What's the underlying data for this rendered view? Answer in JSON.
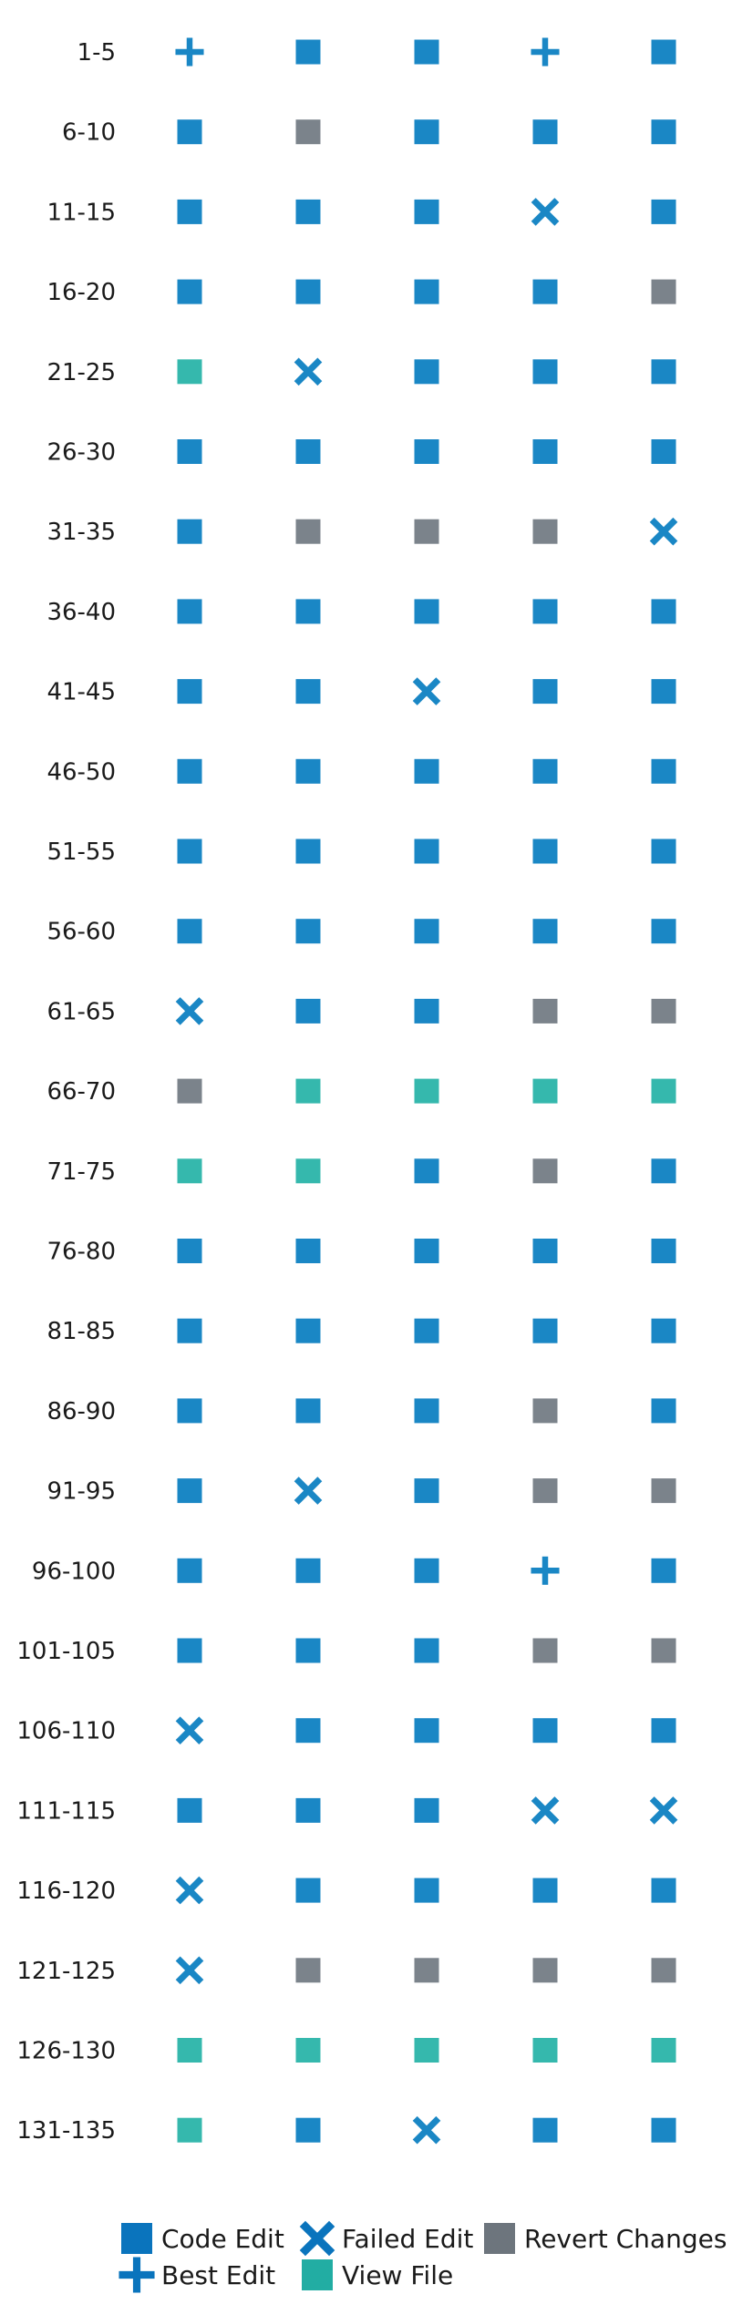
{
  "chart_data": {
    "type": "scatter",
    "title": "",
    "xlabel": "",
    "ylabel": "",
    "grid": false,
    "legend_position": "bottom",
    "columns": 5,
    "marker_types": {
      "code_edit": {
        "label": "Code Edit",
        "shape": "square",
        "color": "#1a87c5"
      },
      "failed_edit": {
        "label": "Failed Edit",
        "shape": "x",
        "color": "#1a87c5"
      },
      "revert_changes": {
        "label": "Revert Changes",
        "shape": "square",
        "color": "#7b838b"
      },
      "best_edit": {
        "label": "Best Edit",
        "shape": "plus",
        "color": "#1a87c5"
      },
      "view_file": {
        "label": "View File",
        "shape": "square",
        "color": "#35b8ad"
      }
    },
    "legend_order": [
      "code_edit",
      "failed_edit",
      "revert_changes",
      "best_edit",
      "view_file"
    ],
    "legend_colors": {
      "code_edit": "#0a74bd",
      "failed_edit": "#0a74bd",
      "revert_changes": "#6d757d",
      "best_edit": "#0a74bd",
      "view_file": "#22ada3"
    },
    "rows": [
      {
        "label": "1-5",
        "steps": [
          "best_edit",
          "code_edit",
          "code_edit",
          "best_edit",
          "code_edit"
        ]
      },
      {
        "label": "6-10",
        "steps": [
          "code_edit",
          "revert_changes",
          "code_edit",
          "code_edit",
          "code_edit"
        ]
      },
      {
        "label": "11-15",
        "steps": [
          "code_edit",
          "code_edit",
          "code_edit",
          "failed_edit",
          "code_edit"
        ]
      },
      {
        "label": "16-20",
        "steps": [
          "code_edit",
          "code_edit",
          "code_edit",
          "code_edit",
          "revert_changes"
        ]
      },
      {
        "label": "21-25",
        "steps": [
          "view_file",
          "failed_edit",
          "code_edit",
          "code_edit",
          "code_edit"
        ]
      },
      {
        "label": "26-30",
        "steps": [
          "code_edit",
          "code_edit",
          "code_edit",
          "code_edit",
          "code_edit"
        ]
      },
      {
        "label": "31-35",
        "steps": [
          "code_edit",
          "revert_changes",
          "revert_changes",
          "revert_changes",
          "failed_edit"
        ]
      },
      {
        "label": "36-40",
        "steps": [
          "code_edit",
          "code_edit",
          "code_edit",
          "code_edit",
          "code_edit"
        ]
      },
      {
        "label": "41-45",
        "steps": [
          "code_edit",
          "code_edit",
          "failed_edit",
          "code_edit",
          "code_edit"
        ]
      },
      {
        "label": "46-50",
        "steps": [
          "code_edit",
          "code_edit",
          "code_edit",
          "code_edit",
          "code_edit"
        ]
      },
      {
        "label": "51-55",
        "steps": [
          "code_edit",
          "code_edit",
          "code_edit",
          "code_edit",
          "code_edit"
        ]
      },
      {
        "label": "56-60",
        "steps": [
          "code_edit",
          "code_edit",
          "code_edit",
          "code_edit",
          "code_edit"
        ]
      },
      {
        "label": "61-65",
        "steps": [
          "failed_edit",
          "code_edit",
          "code_edit",
          "revert_changes",
          "revert_changes"
        ]
      },
      {
        "label": "66-70",
        "steps": [
          "revert_changes",
          "view_file",
          "view_file",
          "view_file",
          "view_file"
        ]
      },
      {
        "label": "71-75",
        "steps": [
          "view_file",
          "view_file",
          "code_edit",
          "revert_changes",
          "code_edit"
        ]
      },
      {
        "label": "76-80",
        "steps": [
          "code_edit",
          "code_edit",
          "code_edit",
          "code_edit",
          "code_edit"
        ]
      },
      {
        "label": "81-85",
        "steps": [
          "code_edit",
          "code_edit",
          "code_edit",
          "code_edit",
          "code_edit"
        ]
      },
      {
        "label": "86-90",
        "steps": [
          "code_edit",
          "code_edit",
          "code_edit",
          "revert_changes",
          "code_edit"
        ]
      },
      {
        "label": "91-95",
        "steps": [
          "code_edit",
          "failed_edit",
          "code_edit",
          "revert_changes",
          "revert_changes"
        ]
      },
      {
        "label": "96-100",
        "steps": [
          "code_edit",
          "code_edit",
          "code_edit",
          "best_edit",
          "code_edit"
        ]
      },
      {
        "label": "101-105",
        "steps": [
          "code_edit",
          "code_edit",
          "code_edit",
          "revert_changes",
          "revert_changes"
        ]
      },
      {
        "label": "106-110",
        "steps": [
          "failed_edit",
          "code_edit",
          "code_edit",
          "code_edit",
          "code_edit"
        ]
      },
      {
        "label": "111-115",
        "steps": [
          "code_edit",
          "code_edit",
          "code_edit",
          "failed_edit",
          "failed_edit"
        ]
      },
      {
        "label": "116-120",
        "steps": [
          "failed_edit",
          "code_edit",
          "code_edit",
          "code_edit",
          "code_edit"
        ]
      },
      {
        "label": "121-125",
        "steps": [
          "failed_edit",
          "revert_changes",
          "revert_changes",
          "revert_changes",
          "revert_changes"
        ]
      },
      {
        "label": "126-130",
        "steps": [
          "view_file",
          "view_file",
          "view_file",
          "view_file",
          "view_file"
        ]
      },
      {
        "label": "131-135",
        "steps": [
          "view_file",
          "code_edit",
          "failed_edit",
          "code_edit",
          "code_edit"
        ]
      }
    ]
  }
}
